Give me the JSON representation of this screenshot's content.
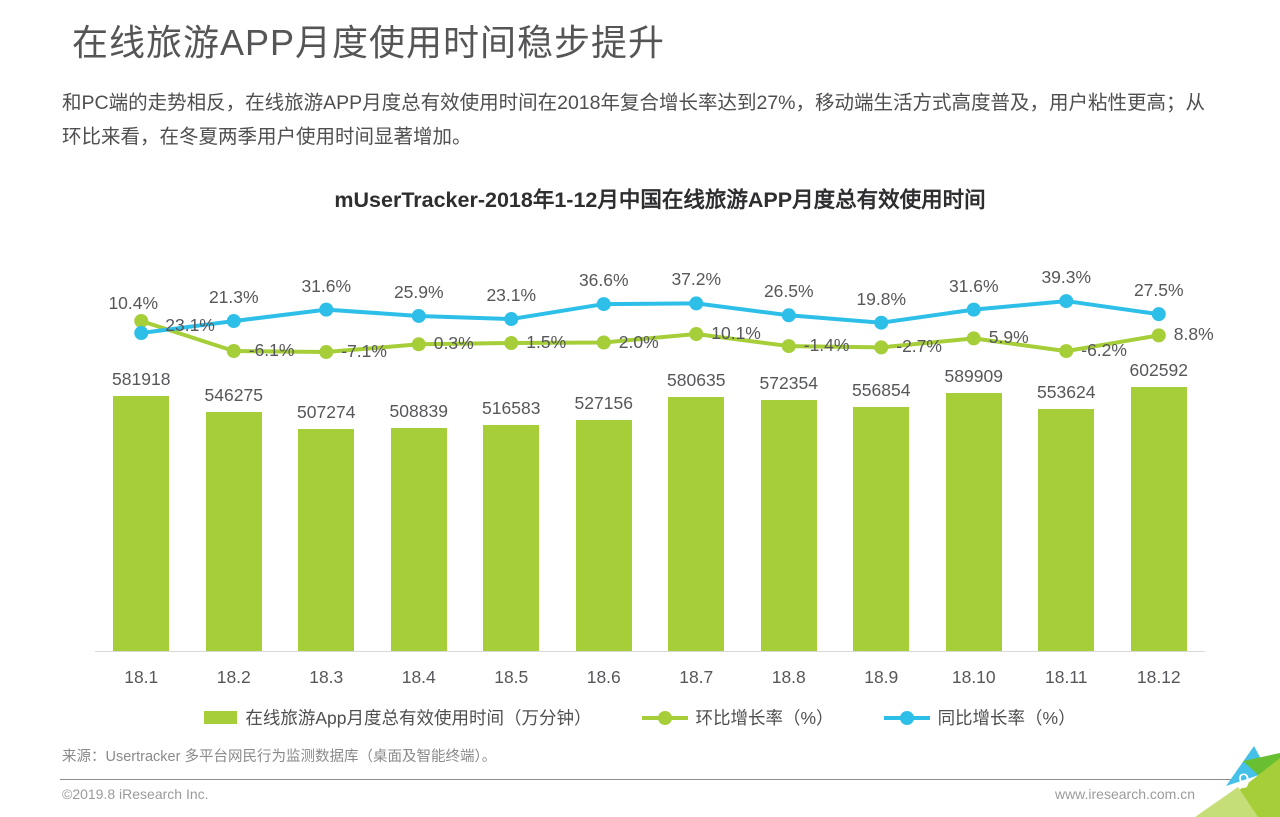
{
  "page": {
    "title": "在线旅游APP月度使用时间稳步提升",
    "intro": "和PC端的走势相反，在线旅游APP月度总有效使用时间在2018年复合增长率达到27%，移动端生活方式高度普及，用户粘性更高；从环比来看，在冬夏两季用户使用时间显著增加。",
    "source": "来源：Usertracker 多平台网民行为监测数据库（桌面及智能终端）。",
    "footer": {
      "copyright": "©2019.8 iResearch Inc.",
      "website": "www.iresearch.com.cn",
      "page_number": "9"
    }
  },
  "colors": {
    "bar_green": "#a6ce39",
    "line_green": "#a6ce39",
    "line_blue": "#2ebfe9",
    "corner_cyan": "#45c1e9",
    "corner_green": "#68bf31",
    "corner_lime": "#a6ce39",
    "corner_light_lime": "#c6de78"
  },
  "chart_data": {
    "type": "bar",
    "title": "mUserTracker-2018年1-12月中国在线旅游APP月度总有效使用时间",
    "categories": [
      "18.1",
      "18.2",
      "18.3",
      "18.4",
      "18.5",
      "18.6",
      "18.7",
      "18.8",
      "18.9",
      "18.10",
      "18.11",
      "18.12"
    ],
    "series": [
      {
        "name": "在线旅游App月度总有效使用时间（万分钟）",
        "type": "bar",
        "color": "#a6ce39",
        "values": [
          581918,
          546275,
          507274,
          508839,
          516583,
          527156,
          580635,
          572354,
          556854,
          589909,
          553624,
          602592
        ]
      },
      {
        "name": "环比增长率（%）",
        "type": "line",
        "color": "#a6ce39",
        "values": [
          10.4,
          -6.1,
          -7.1,
          0.3,
          1.5,
          2.0,
          10.1,
          -1.4,
          -2.7,
          5.9,
          -6.2,
          8.8
        ]
      },
      {
        "name": "同比增长率（%）",
        "type": "line",
        "color": "#2ebfe9",
        "values": [
          23.1,
          21.3,
          31.6,
          25.9,
          23.1,
          36.6,
          37.2,
          26.5,
          19.8,
          31.6,
          39.3,
          27.5
        ]
      }
    ],
    "legend_position": "bottom",
    "grid": false,
    "value_labels_shown": true
  }
}
